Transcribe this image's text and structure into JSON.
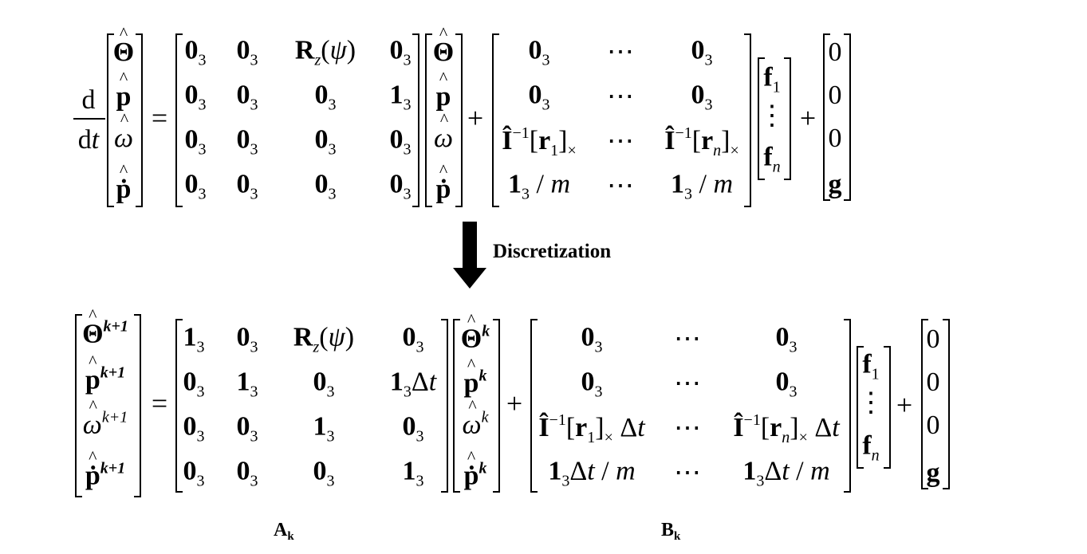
{
  "top": {
    "deriv_num": "d",
    "deriv_den": "dt",
    "state": [
      "Θ",
      "p",
      "ω",
      "ṗ"
    ],
    "A": [
      [
        "0",
        "0",
        "R_z(ψ)",
        "0"
      ],
      [
        "0",
        "0",
        "0",
        "1"
      ],
      [
        "0",
        "0",
        "0",
        "0"
      ],
      [
        "0",
        "0",
        "0",
        "0"
      ]
    ],
    "B_rows": [
      [
        "0₃",
        "⋯",
        "0₃"
      ],
      [
        "0₃",
        "⋯",
        "0₃"
      ],
      [
        "Î⁻¹[r₁]×",
        "⋯",
        "Î⁻¹[rₙ]×"
      ],
      [
        "1₃ / m",
        "⋯",
        "1₃ / m"
      ]
    ],
    "f": [
      "f₁",
      "⋮",
      "fₙ"
    ],
    "g": [
      "0",
      "0",
      "0",
      "g"
    ]
  },
  "arrow_label": "Discretization",
  "bottom": {
    "state_next": [
      "Θ",
      "p",
      "ω",
      "ṗ"
    ],
    "A": [
      [
        "1",
        "0",
        "R_z(ψ)",
        "0"
      ],
      [
        "0",
        "1",
        "0",
        "1Δt"
      ],
      [
        "0",
        "0",
        "1",
        "0"
      ],
      [
        "0",
        "0",
        "0",
        "1"
      ]
    ],
    "B_rows": [
      [
        "0₃",
        "⋯",
        "0₃"
      ],
      [
        "0₃",
        "⋯",
        "0₃"
      ],
      [
        "Î⁻¹[r₁]× Δt",
        "⋯",
        "Î⁻¹[rₙ]× Δt"
      ],
      [
        "1₃Δt / m",
        "⋯",
        "1₃Δt / m"
      ]
    ],
    "f": [
      "f₁",
      "⋮",
      "fₙ"
    ],
    "g": [
      "0",
      "0",
      "0",
      "g"
    ]
  },
  "labels": {
    "Ak": "A",
    "Ak_sub": "k",
    "Bk": "B",
    "Bk_sub": "k"
  }
}
